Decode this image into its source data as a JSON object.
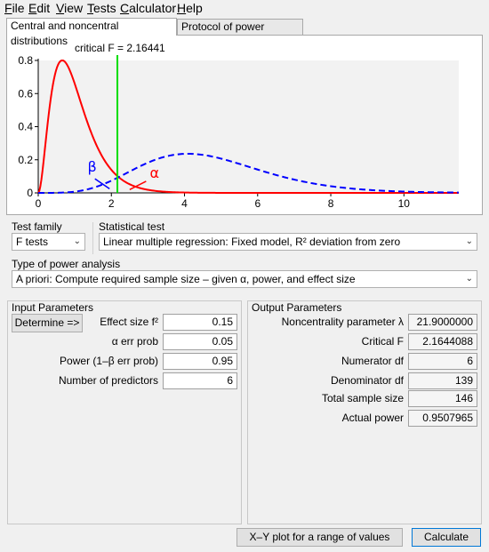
{
  "menu": [
    {
      "label": "File",
      "u": "F",
      "rest": "ile"
    },
    {
      "label": "Edit",
      "u": "E",
      "rest": "dit"
    },
    {
      "label": "View",
      "u": "V",
      "rest": "iew"
    },
    {
      "label": "Tests",
      "u": "T",
      "rest": "ests"
    },
    {
      "label": "Calculator",
      "u": "C",
      "rest": "alculator"
    },
    {
      "label": "Help",
      "u": "H",
      "rest": "elp"
    }
  ],
  "tabs": {
    "central": "Central and noncentral distributions",
    "protocol": "Protocol of power analyses"
  },
  "chart_data": {
    "type": "line",
    "annotation": "critical F = 2.16441",
    "critical_f": 2.16441,
    "xlim": [
      0,
      11.5
    ],
    "ylim": [
      0,
      0.8
    ],
    "x_ticks": [
      "0",
      "2",
      "4",
      "6",
      "8",
      "10"
    ],
    "y_ticks": [
      "0",
      "0.2",
      "0.4",
      "0.6",
      "0.8"
    ],
    "series": [
      {
        "role": "central",
        "df1": 6,
        "df2": 139,
        "color": "#ff0000",
        "style": "solid"
      },
      {
        "role": "noncentral",
        "df1": 6,
        "df2": 139,
        "lambda": 21.9,
        "color": "#0000ff",
        "style": "dashed"
      }
    ],
    "labels": {
      "beta": "β",
      "alpha": "α"
    },
    "colors": {
      "critical_line": "#00dd00",
      "beta": "#0000ff",
      "alpha": "#ff0000"
    }
  },
  "test_family": {
    "label": "Test family",
    "value": "F tests"
  },
  "statistical_test": {
    "label": "Statistical test",
    "value": "Linear multiple regression: Fixed model, R² deviation from zero"
  },
  "power_type": {
    "label": "Type of power analysis",
    "value": "A priori: Compute required sample size – given α, power, and effect size"
  },
  "input": {
    "title": "Input Parameters",
    "determine": "Determine =>",
    "rows": [
      {
        "label": "Effect size f²",
        "value": "0.15"
      },
      {
        "label": "α err prob",
        "value": "0.05"
      },
      {
        "label": "Power (1–β err prob)",
        "value": "0.95"
      },
      {
        "label": "Number of predictors",
        "value": "6"
      }
    ]
  },
  "output": {
    "title": "Output Parameters",
    "rows": [
      {
        "label": "Noncentrality parameter λ",
        "value": "21.9000000"
      },
      {
        "label": "Critical F",
        "value": "2.1644088"
      },
      {
        "label": "Numerator df",
        "value": "6"
      },
      {
        "label": "Denominator df",
        "value": "139"
      },
      {
        "label": "Total sample size",
        "value": "146"
      },
      {
        "label": "Actual power",
        "value": "0.9507965"
      }
    ]
  },
  "buttons": {
    "xy_plot": "X–Y plot for a range of values",
    "calculate": "Calculate"
  }
}
